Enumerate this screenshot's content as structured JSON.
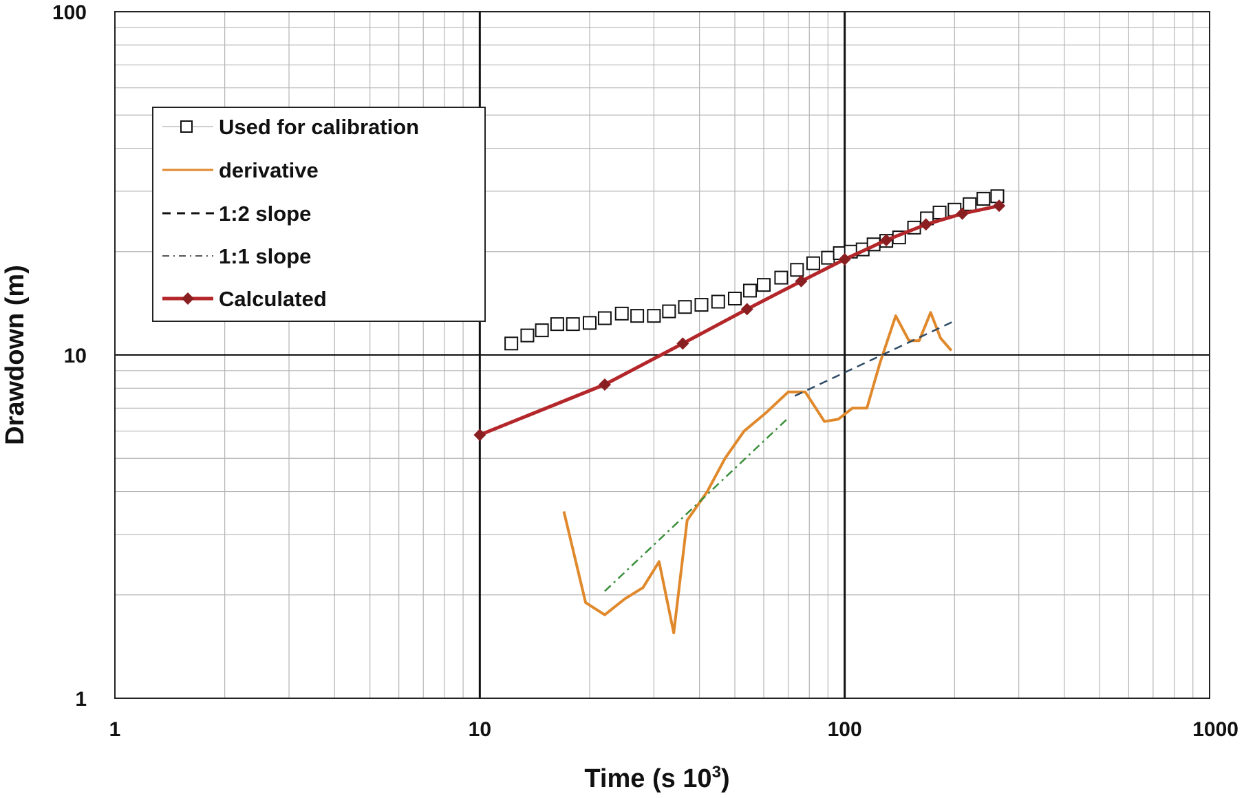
{
  "chart_data": {
    "type": "line",
    "x_scale": "log",
    "y_scale": "log",
    "xlabel": "Time (s 10",
    "xlabel_sup": "3",
    "xlabel_end": ")",
    "ylabel": "Drawdown (m)",
    "xlim": [
      1,
      1000
    ],
    "ylim": [
      1,
      100
    ],
    "x_ticks": [
      {
        "v": 1,
        "label": "1"
      },
      {
        "v": 10,
        "label": "10"
      },
      {
        "v": 100,
        "label": "100"
      },
      {
        "v": 1000,
        "label": "1000"
      }
    ],
    "y_ticks": [
      {
        "v": 1,
        "label": "1"
      },
      {
        "v": 10,
        "label": "10"
      },
      {
        "v": 100,
        "label": "100"
      }
    ],
    "grid": true,
    "legend_position": "top-left",
    "series": [
      {
        "key": "calibration",
        "name": "Used for calibration",
        "style": "open-square-markers",
        "color": "#111111",
        "points": [
          [
            12.2,
            10.8
          ],
          [
            13.5,
            11.4
          ],
          [
            14.8,
            11.8
          ],
          [
            16.3,
            12.3
          ],
          [
            18.0,
            12.3
          ],
          [
            20.0,
            12.4
          ],
          [
            22.0,
            12.8
          ],
          [
            24.5,
            13.2
          ],
          [
            27.0,
            13.0
          ],
          [
            30.0,
            13.0
          ],
          [
            33.0,
            13.4
          ],
          [
            36.5,
            13.8
          ],
          [
            40.5,
            14.0
          ],
          [
            45.0,
            14.3
          ],
          [
            50.0,
            14.6
          ],
          [
            55.0,
            15.4
          ],
          [
            60.0,
            16.0
          ],
          [
            67.0,
            16.8
          ],
          [
            74.0,
            17.7
          ],
          [
            82.0,
            18.5
          ],
          [
            90.0,
            19.2
          ],
          [
            97.0,
            19.8
          ],
          [
            104.0,
            20.0
          ],
          [
            112.0,
            20.3
          ],
          [
            120.0,
            21.0
          ],
          [
            130.0,
            21.5
          ],
          [
            141.0,
            22.0
          ],
          [
            155.0,
            23.5
          ],
          [
            168.0,
            25.0
          ],
          [
            182.0,
            26.0
          ],
          [
            200.0,
            26.5
          ],
          [
            220.0,
            27.5
          ],
          [
            240.0,
            28.5
          ],
          [
            262.0,
            29.0
          ]
        ]
      },
      {
        "key": "derivative",
        "name": "derivative",
        "style": "solid",
        "color": "#e0892c",
        "points": [
          [
            17.0,
            3.5
          ],
          [
            19.5,
            1.9
          ],
          [
            22.0,
            1.75
          ],
          [
            25.0,
            1.95
          ],
          [
            28.0,
            2.1
          ],
          [
            31.0,
            2.5
          ],
          [
            34.0,
            1.55
          ],
          [
            37.0,
            3.3
          ],
          [
            42.0,
            4.0
          ],
          [
            47.0,
            5.0
          ],
          [
            53.0,
            6.0
          ],
          [
            61.0,
            6.8
          ],
          [
            70.0,
            7.8
          ],
          [
            78.0,
            7.8
          ],
          [
            88.0,
            6.4
          ],
          [
            96.0,
            6.5
          ],
          [
            105.0,
            7.0
          ],
          [
            115.0,
            7.0
          ],
          [
            125.0,
            9.5
          ],
          [
            138.0,
            13.0
          ],
          [
            150.0,
            11.0
          ],
          [
            160.0,
            11.0
          ],
          [
            172.0,
            13.3
          ],
          [
            183.0,
            11.2
          ],
          [
            196.0,
            10.3
          ]
        ]
      },
      {
        "key": "slope_half",
        "name": "1:2 slope",
        "style": "dashed",
        "color": "#2e4a66",
        "points": [
          [
            73.0,
            7.6
          ],
          [
            198.0,
            12.5
          ]
        ]
      },
      {
        "key": "slope_one",
        "name": "1:1 slope",
        "style": "dash-dot",
        "color": "#3b8f3b",
        "points": [
          [
            22.0,
            2.05
          ],
          [
            70.0,
            6.55
          ]
        ]
      },
      {
        "key": "calculated",
        "name": "Calculated",
        "style": "solid-with-diamonds",
        "color": "#b3262a",
        "points": [
          [
            10.0,
            5.85
          ],
          [
            22.0,
            8.2
          ],
          [
            36.0,
            10.8
          ],
          [
            54.0,
            13.6
          ],
          [
            76.0,
            16.4
          ],
          [
            100.0,
            19.0
          ],
          [
            130.0,
            21.6
          ],
          [
            167.0,
            24.0
          ],
          [
            210.0,
            25.8
          ],
          [
            265.0,
            27.2
          ]
        ]
      }
    ]
  }
}
